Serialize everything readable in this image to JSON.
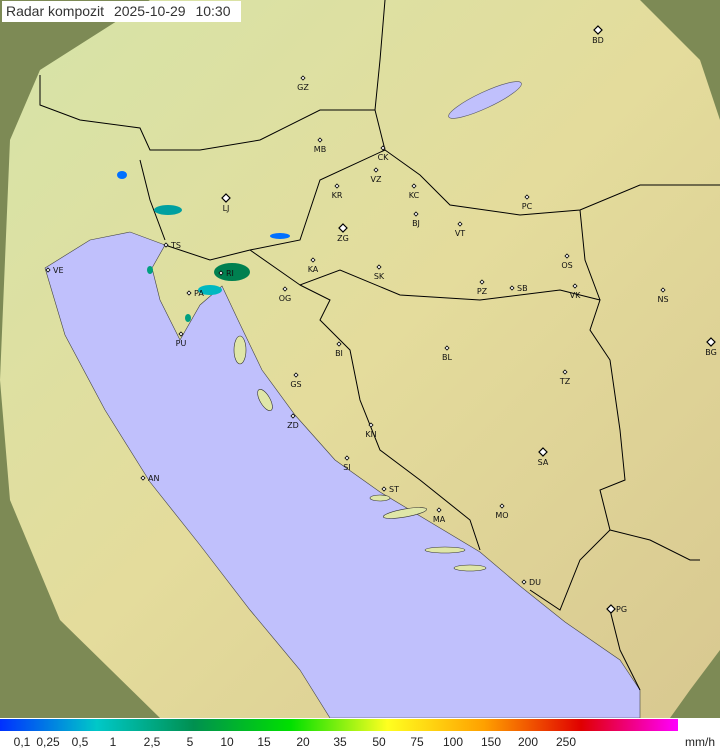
{
  "header": {
    "title": "Radar kompozit",
    "date": "2025-10-29",
    "time": "10:30"
  },
  "map": {
    "colors": {
      "sea": "#c0c0fc",
      "land": "#dfe6a8",
      "outside": "#7d8a55",
      "border": "#000000"
    },
    "cities": [
      {
        "code": "BD",
        "capital": true
      },
      {
        "code": "GZ"
      },
      {
        "code": "MB"
      },
      {
        "code": "CK"
      },
      {
        "code": "VZ"
      },
      {
        "code": "KR"
      },
      {
        "code": "KC"
      },
      {
        "code": "LJ",
        "capital": true
      },
      {
        "code": "PC"
      },
      {
        "code": "BJ"
      },
      {
        "code": "VT"
      },
      {
        "code": "ZG",
        "capital": true
      },
      {
        "code": "TS"
      },
      {
        "code": "VE"
      },
      {
        "code": "KA"
      },
      {
        "code": "SK"
      },
      {
        "code": "OS"
      },
      {
        "code": "PZ"
      },
      {
        "code": "SB"
      },
      {
        "code": "VK"
      },
      {
        "code": "NS"
      },
      {
        "code": "RI"
      },
      {
        "code": "PA"
      },
      {
        "code": "OG"
      },
      {
        "code": "PU"
      },
      {
        "code": "BG",
        "capital": true
      },
      {
        "code": "BI"
      },
      {
        "code": "BL"
      },
      {
        "code": "TZ"
      },
      {
        "code": "GS"
      },
      {
        "code": "ZD"
      },
      {
        "code": "KN"
      },
      {
        "code": "SA",
        "capital": true
      },
      {
        "code": "SI"
      },
      {
        "code": "AN"
      },
      {
        "code": "ST"
      },
      {
        "code": "MA"
      },
      {
        "code": "MO"
      },
      {
        "code": "DU"
      },
      {
        "code": "PG",
        "capital": true
      }
    ]
  },
  "legend": {
    "unit": "mm/h",
    "ticks": [
      "0,1",
      "0,25",
      "0,5",
      "1",
      "2,5",
      "5",
      "10",
      "15",
      "20",
      "35",
      "50",
      "75",
      "100",
      "150",
      "200",
      "250"
    ],
    "colors": [
      "#0030ff",
      "#00c8c8",
      "#009050",
      "#00e000",
      "#ffff20",
      "#ffa000",
      "#e00000",
      "#ff00ff"
    ]
  }
}
